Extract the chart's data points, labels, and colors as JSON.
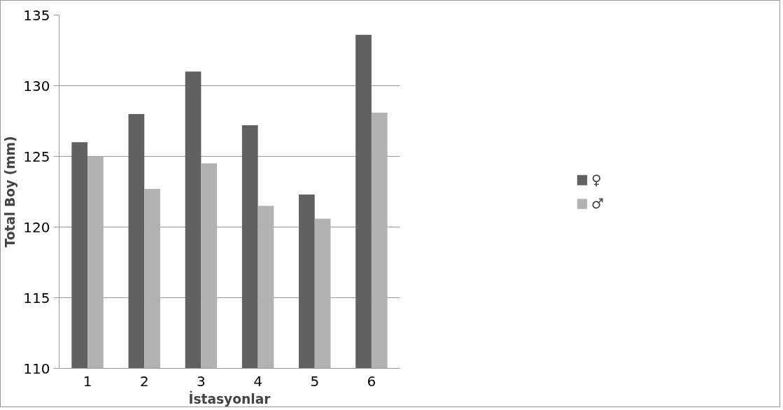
{
  "chart_data": {
    "type": "bar",
    "xlabel": "İstasyonlar",
    "ylabel": "Total Boy (mm)",
    "categories": [
      "1",
      "2",
      "3",
      "4",
      "5",
      "6"
    ],
    "series": [
      {
        "name": "♀",
        "color": "#616161",
        "values": [
          126.0,
          128.0,
          131.0,
          127.2,
          122.3,
          133.6
        ]
      },
      {
        "name": "♂",
        "color": "#b2b2b2",
        "values": [
          125.0,
          122.7,
          124.5,
          121.5,
          120.6,
          128.1
        ]
      }
    ],
    "ylim": [
      110,
      135
    ],
    "yticks": [
      110,
      115,
      120,
      125,
      130,
      135
    ],
    "grid": "y",
    "legend": "right"
  }
}
